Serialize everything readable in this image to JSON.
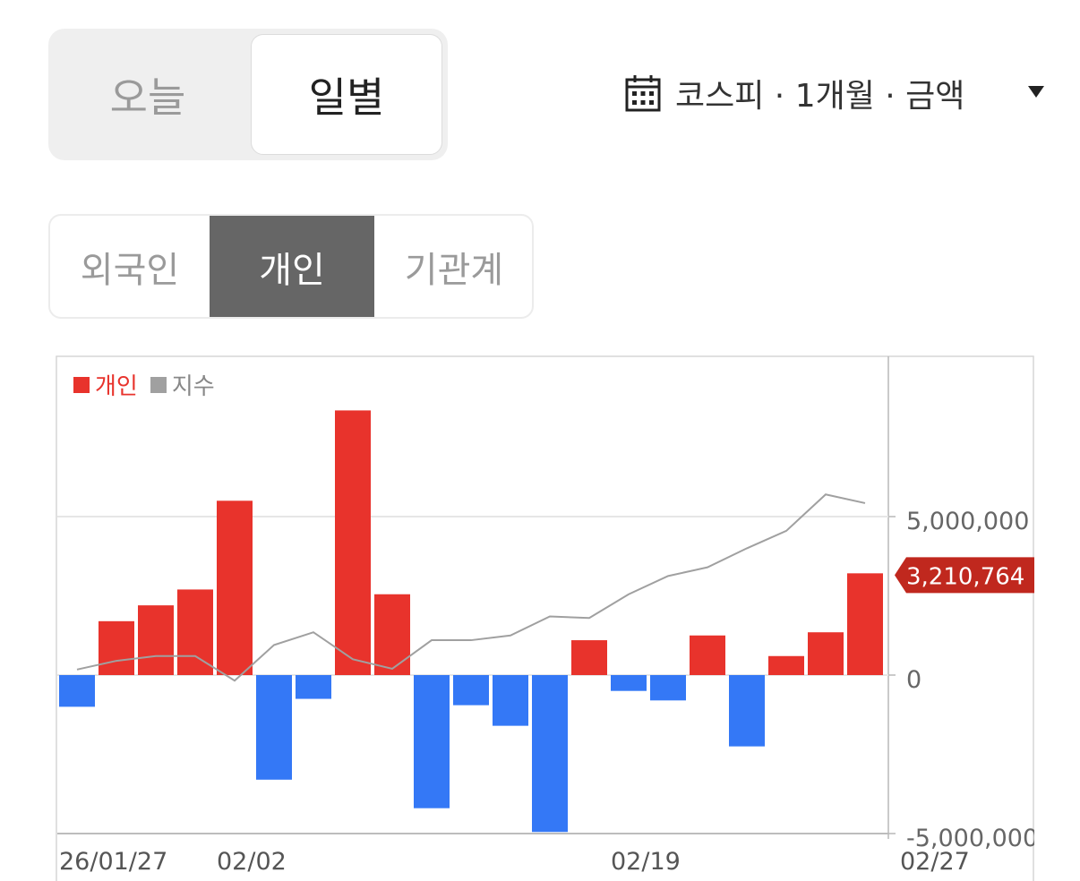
{
  "period_toggle": {
    "today_label": "오늘",
    "daily_label": "일별"
  },
  "filter": {
    "label": "코스피 · 1개월 · 금액",
    "icon": "calendar-icon"
  },
  "investor_tabs": [
    {
      "label": "외국인",
      "selected": false
    },
    {
      "label": "개인",
      "selected": true
    },
    {
      "label": "기관계",
      "selected": false
    }
  ],
  "colors": {
    "positive": "#e8332c",
    "negative": "#3478f6",
    "index_line": "#a0a0a0",
    "badge": "#c0281e"
  },
  "chart_data": {
    "type": "bar",
    "legend": [
      {
        "name": "개인",
        "color": "#e8332c"
      },
      {
        "name": "지수",
        "color": "#a0a0a0"
      }
    ],
    "y_ticks": [
      "5,000,000",
      "0",
      "-5,000,000"
    ],
    "ylim": [
      -5000000,
      9500000
    ],
    "x_tick_labels": [
      "26/01/27",
      "02/02",
      "02/19",
      "02/27"
    ],
    "last_value_label": "3,210,764",
    "series": [
      {
        "name": "개인",
        "values": [
          -1000000,
          1700000,
          2200000,
          2700000,
          5500000,
          -3300000,
          -750000,
          8350000,
          2550000,
          -4200000,
          -950000,
          -1600000,
          -4950000,
          1100000,
          -500000,
          -800000,
          1250000,
          -2250000,
          600000,
          1350000,
          3210764
        ]
      },
      {
        "name": "지수",
        "values": [
          0.07,
          0.18,
          0.24,
          0.24,
          -0.07,
          0.38,
          0.54,
          0.2,
          0.08,
          0.44,
          0.44,
          0.5,
          0.74,
          0.72,
          1.02,
          1.25,
          1.36,
          1.6,
          1.82,
          2.28,
          2.17
        ]
      }
    ]
  }
}
